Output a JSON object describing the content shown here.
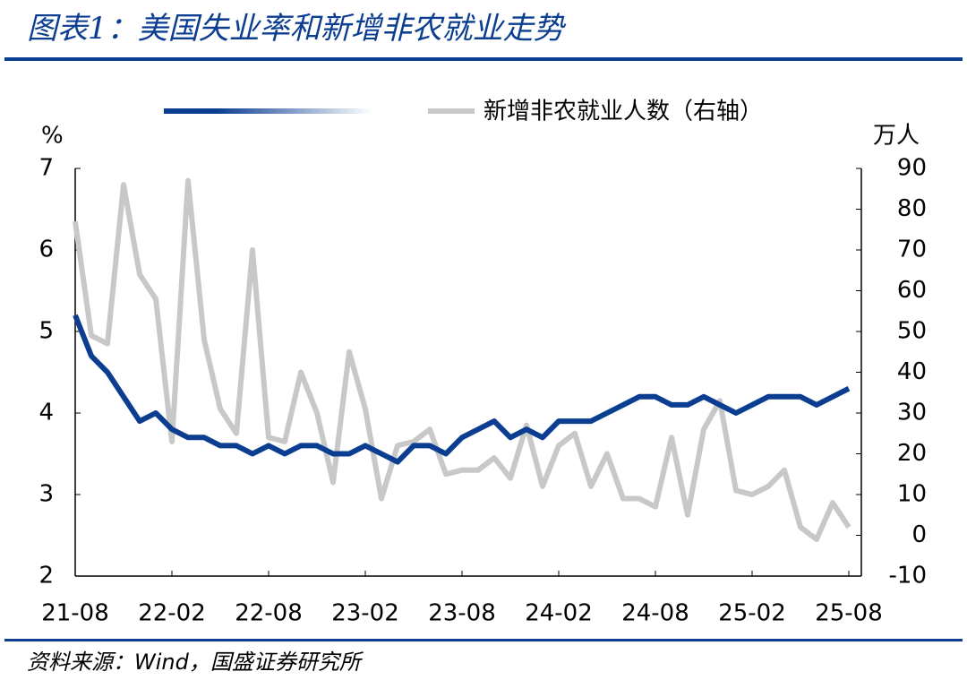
{
  "chart_data": {
    "type": "line",
    "title": "图表1：美国失业率和新增非农就业走势",
    "source": "资料来源：Wind，国盛证券研究所",
    "ylabel": "%",
    "y2label": "万人",
    "categories": [
      "21-08",
      null,
      null,
      null,
      null,
      null,
      "22-02",
      null,
      null,
      null,
      null,
      null,
      "22-08",
      null,
      null,
      null,
      null,
      null,
      "23-02",
      null,
      null,
      null,
      null,
      null,
      "23-08",
      null,
      null,
      null,
      null,
      null,
      "24-02",
      null,
      null,
      null,
      null,
      null,
      "24-08",
      null,
      null,
      null,
      null,
      null,
      "25-02",
      null,
      null,
      null,
      null,
      null,
      "25-08"
    ],
    "ylim": [
      2,
      7
    ],
    "yticks": [
      2,
      3,
      4,
      5,
      6,
      7
    ],
    "y2lim": [
      -10,
      90
    ],
    "y2ticks": [
      -10,
      0,
      10,
      20,
      30,
      40,
      50,
      60,
      70,
      80,
      90
    ],
    "series": [
      {
        "color": "#0b3d91",
        "values": [
          5.2,
          4.7,
          4.5,
          4.2,
          3.9,
          4.0,
          3.8,
          3.7,
          3.7,
          3.6,
          3.6,
          3.5,
          3.6,
          3.5,
          3.6,
          3.6,
          3.5,
          3.5,
          3.6,
          3.5,
          3.4,
          3.6,
          3.6,
          3.5,
          3.7,
          3.8,
          3.9,
          3.7,
          3.8,
          3.7,
          3.9,
          3.9,
          3.9,
          4.0,
          4.1,
          4.2,
          4.2,
          4.1,
          4.1,
          4.2,
          4.1,
          4.0,
          4.1,
          4.2,
          4.2,
          4.2,
          4.1,
          4.2,
          4.3
        ]
      },
      {
        "name": "新增非农就业人数（右轴）",
        "color": "#c8c8c8",
        "axis": "y2",
        "values": [
          77,
          49,
          47,
          86,
          64,
          58,
          23,
          87,
          48,
          31,
          25,
          70,
          24,
          23,
          40,
          30,
          13,
          45,
          31,
          9,
          22,
          23,
          26,
          15,
          16,
          16,
          19,
          14,
          27,
          12,
          22,
          25,
          12,
          20,
          9,
          9,
          7,
          24,
          5,
          26,
          33,
          11,
          10,
          12,
          16,
          2,
          -1,
          8,
          2
        ]
      }
    ]
  }
}
